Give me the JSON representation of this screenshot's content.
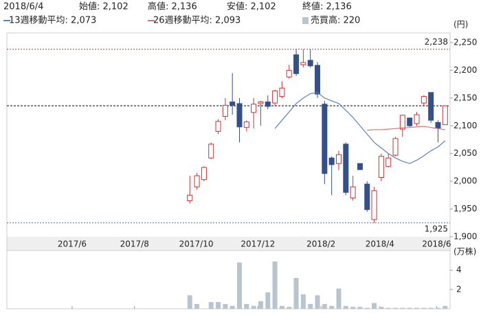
{
  "chart_data": {
    "type": "candlestick",
    "header": {
      "date": "2018/6/4",
      "open": "始値: 2,102",
      "high": "高値: 2,136",
      "low": "安値: 2,102",
      "close": "終値: 2,136"
    },
    "unit_price": "(円)",
    "unit_volume": "(万株)",
    "open": [
      1965,
      1990,
      2003,
      2042,
      2090,
      2117,
      2143,
      2140,
      2097,
      2124,
      2140,
      2143,
      2141,
      2153,
      2188,
      2228,
      2210,
      2218,
      2209,
      2139,
      2042,
      2032,
      2067,
      1970,
      2032,
      1995,
      1931,
      2007,
      2027,
      2047,
      2094,
      2114,
      2104,
      2141,
      2160,
      2106,
      2102
    ],
    "close": [
      1975,
      2010,
      2025,
      2067,
      2108,
      2137,
      2137,
      2098,
      2107,
      2139,
      2143,
      2135,
      2163,
      2168,
      2200,
      2194,
      2214,
      2208,
      2157,
      2014,
      2030,
      2048,
      1980,
      1990,
      2021,
      1949,
      1983,
      2045,
      2042,
      2077,
      2119,
      2100,
      2120,
      2153,
      2110,
      2096,
      2136
    ],
    "high": [
      2010,
      2015,
      2027,
      2070,
      2112,
      2150,
      2195,
      2150,
      2110,
      2150,
      2145,
      2155,
      2165,
      2180,
      2210,
      2238,
      2238,
      2238,
      2215,
      2145,
      2045,
      2055,
      2070,
      2010,
      2032,
      2000,
      1990,
      2050,
      2050,
      2080,
      2120,
      2115,
      2125,
      2155,
      2160,
      2110,
      2136
    ],
    "low": [
      1960,
      1985,
      2000,
      2040,
      2085,
      2110,
      2120,
      2070,
      2090,
      2095,
      2100,
      2130,
      2135,
      2150,
      2185,
      2190,
      2205,
      2205,
      2150,
      1995,
      1975,
      2020,
      1975,
      1965,
      2021,
      1945,
      1925,
      2000,
      2025,
      2045,
      2080,
      2098,
      2100,
      2135,
      2105,
      2070,
      2102
    ],
    "volume": [
      1.4,
      0.5,
      0,
      0.7,
      0.7,
      0.5,
      0.3,
      4.8,
      0.5,
      0.3,
      0.8,
      1.7,
      4.9,
      0.3,
      0.2,
      3.2,
      1.5,
      0.5,
      1.4,
      0.5,
      0.3,
      2.1,
      0.3,
      0.2,
      0.2,
      0.1,
      0.6,
      0.2,
      0.1,
      0.1,
      0.1,
      0.1,
      0.1,
      0.1,
      0.1,
      0.1,
      0.3
    ],
    "up_color": "#d03030",
    "down_color": "#34508a",
    "volume_color": "#b8c4ce",
    "series": [
      {
        "name": "13週移動平均: 2,073",
        "color": "#5b82c0",
        "values": [
          null,
          null,
          null,
          null,
          null,
          null,
          null,
          null,
          null,
          null,
          null,
          null,
          2095,
          2110,
          2125,
          2140,
          2150,
          2158,
          2160,
          2150,
          2145,
          2140,
          2128,
          2115,
          2100,
          2085,
          2070,
          2060,
          2050,
          2042,
          2036,
          2032,
          2038,
          2046,
          2055,
          2062,
          2073
        ]
      },
      {
        "name": "26週移動平均: 2,093",
        "color": "#e07070",
        "values": [
          null,
          null,
          null,
          null,
          null,
          null,
          null,
          null,
          null,
          null,
          null,
          null,
          null,
          null,
          null,
          null,
          null,
          null,
          null,
          null,
          null,
          null,
          null,
          null,
          null,
          2092,
          2093,
          2093,
          2094,
          2095,
          2096,
          2097,
          2098,
          2099,
          2097,
          2095,
          2093
        ]
      }
    ],
    "volume_legend": "売買高: 220",
    "ref_lines": [
      {
        "value": 2238,
        "label": "2,238",
        "color": "#d03030"
      },
      {
        "value": 1925,
        "label": "1,925",
        "color": "#5070a0"
      }
    ],
    "current_line": 2136,
    "xlim": [
      -25.8,
      36.7
    ],
    "xticks": [
      {
        "value": -16.6,
        "label": "2017/6"
      },
      {
        "value": -7.8,
        "label": "2017/8"
      },
      {
        "value": 0.9,
        "label": "2017/10"
      },
      {
        "value": 9.6,
        "label": "2017/12"
      },
      {
        "value": 18.5,
        "label": "2018/2"
      },
      {
        "value": 26.8,
        "label": "2018/4"
      },
      {
        "value": 34.8,
        "label": "2018/6"
      }
    ],
    "ylim": [
      1900,
      2250
    ],
    "yticks": [
      {
        "value": 1900,
        "label": "1,900"
      },
      {
        "value": 1950,
        "label": "1,950"
      },
      {
        "value": 2000,
        "label": "2,000"
      },
      {
        "value": 2050,
        "label": "2,050"
      },
      {
        "value": 2100,
        "label": "2,100"
      },
      {
        "value": 2150,
        "label": "2,150"
      },
      {
        "value": 2200,
        "label": "2,200"
      },
      {
        "value": 2250,
        "label": "2,250"
      }
    ],
    "vlim": [
      0,
      5.4
    ],
    "vticks": [
      2,
      4
    ]
  }
}
